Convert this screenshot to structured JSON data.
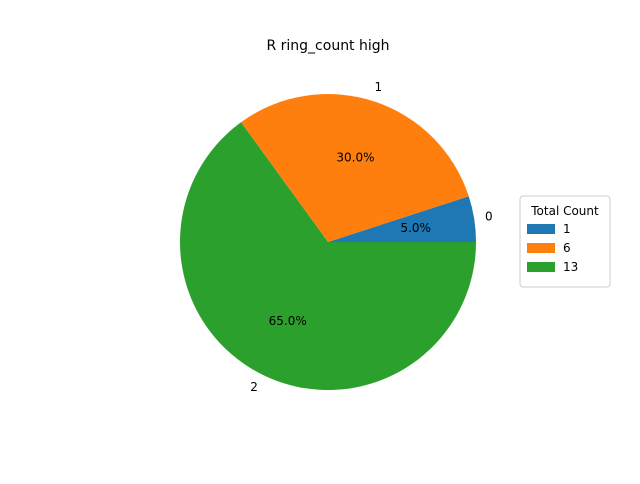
{
  "chart_data": {
    "type": "pie",
    "title": "R ring_count high",
    "categories": [
      "0",
      "1",
      "2"
    ],
    "values": [
      1,
      6,
      13
    ],
    "percent_labels": [
      "5.0%",
      "30.0%",
      "65.0%"
    ],
    "colors": [
      "#1f77b4",
      "#ff7f0e",
      "#2ca02c"
    ],
    "legend": {
      "title": "Total Count",
      "entries": [
        "1",
        "6",
        "13"
      ],
      "placement": "right"
    }
  }
}
